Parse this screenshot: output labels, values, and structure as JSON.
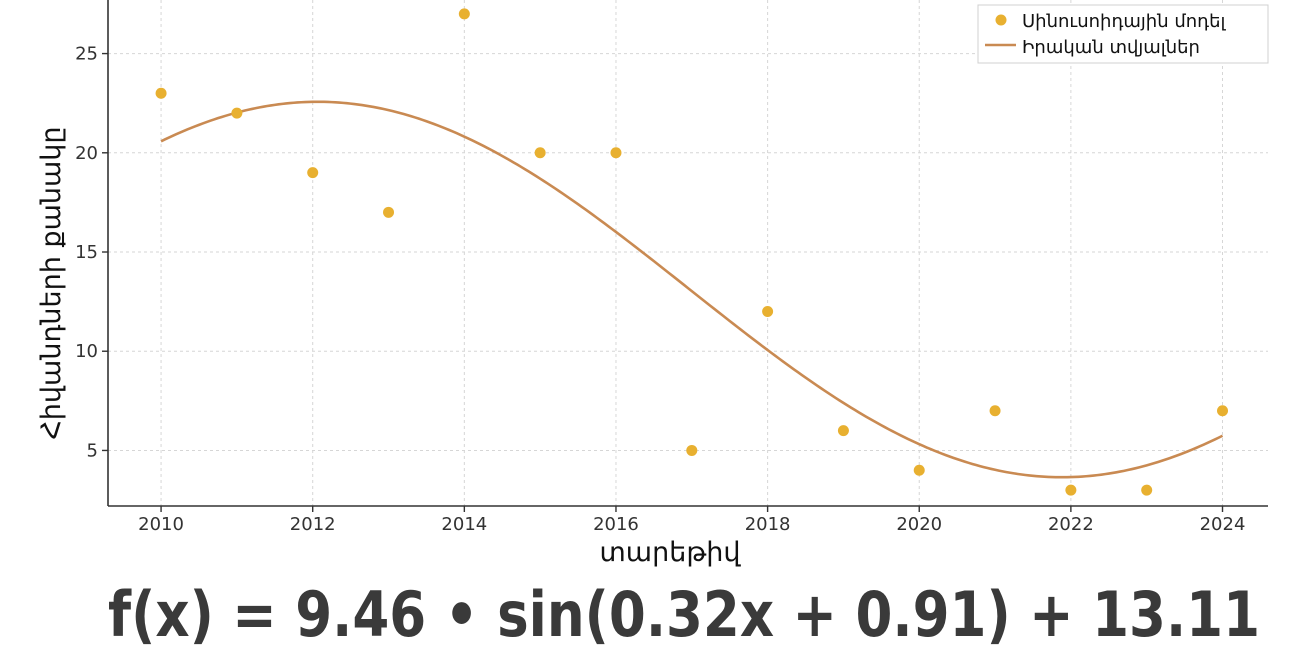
{
  "chart_data": {
    "type": "scatter",
    "xlabel": "տարեթիվ",
    "ylabel": "Հիվանդների քանակը",
    "xlim": [
      2009.3,
      2024.6
    ],
    "ylim": [
      2.2,
      27.7
    ],
    "x_ticks": [
      2010,
      2012,
      2014,
      2016,
      2018,
      2020,
      2022,
      2024
    ],
    "y_ticks": [
      5,
      10,
      15,
      20,
      25
    ],
    "grid": true,
    "legend_position": "top-right",
    "series": [
      {
        "name": "Սինուսոիդային մոդել",
        "kind": "scatter",
        "color": "#e8b030",
        "x": [
          2010,
          2011,
          2012,
          2013,
          2014,
          2015,
          2016,
          2017,
          2018,
          2019,
          2020,
          2021,
          2022,
          2023,
          2024
        ],
        "y": [
          23,
          22,
          19,
          17,
          27,
          20,
          20,
          5,
          12,
          6,
          4,
          7,
          3,
          3,
          7
        ]
      },
      {
        "name": "Իրական տվյալներ",
        "kind": "line",
        "color": "#c98a52",
        "function": {
          "amplitude": 9.46,
          "frequency": 0.32,
          "phase": 0.91,
          "offset": 13.11,
          "x_origin": 2010
        },
        "x_range": [
          2010,
          2024
        ]
      }
    ],
    "annotations": [
      {
        "text": "f(x) = 9.46  • sin(0.32x + 0.91) + 13.11"
      }
    ]
  }
}
